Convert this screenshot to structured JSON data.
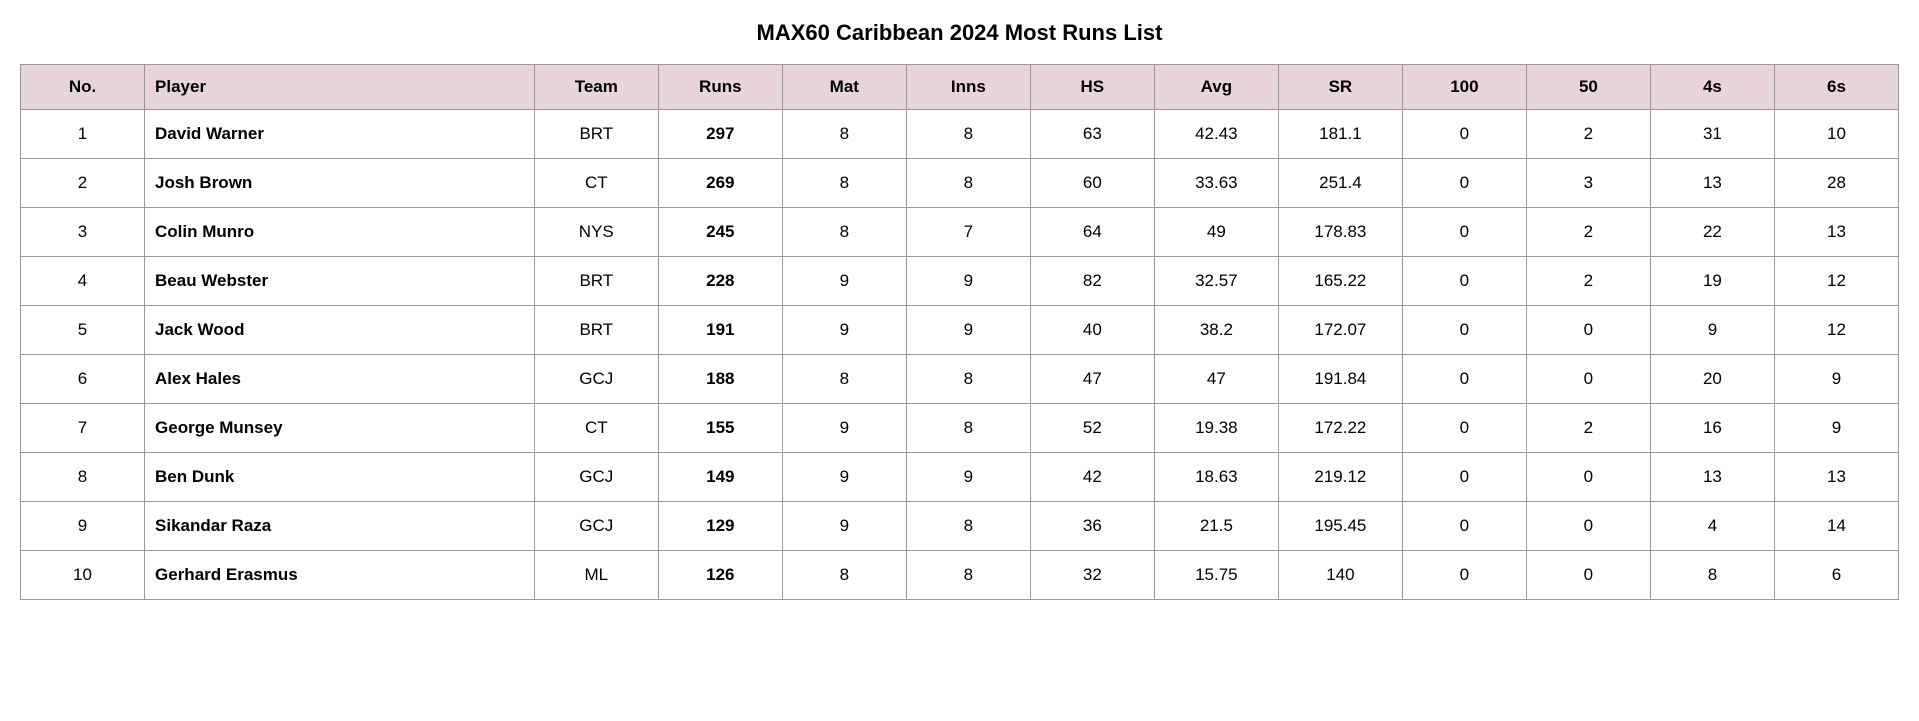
{
  "title": "MAX60 Caribbean 2024 Most Runs List",
  "table": {
    "type": "table",
    "header_bg_color": "#e8d4dd",
    "border_color": "#999999",
    "background_color": "#ffffff",
    "text_color": "#000000",
    "title_fontsize": 22,
    "header_fontsize": 17,
    "cell_fontsize": 17,
    "columns": [
      {
        "key": "no",
        "label": "No.",
        "align": "center",
        "width": "7%"
      },
      {
        "key": "player",
        "label": "Player",
        "align": "left",
        "width": "22%",
        "bold": true
      },
      {
        "key": "team",
        "label": "Team",
        "align": "center",
        "width": "7%"
      },
      {
        "key": "runs",
        "label": "Runs",
        "align": "center",
        "width": "7%",
        "bold": true
      },
      {
        "key": "mat",
        "label": "Mat",
        "align": "center",
        "width": "7%"
      },
      {
        "key": "inns",
        "label": "Inns",
        "align": "center",
        "width": "7%"
      },
      {
        "key": "hs",
        "label": "HS",
        "align": "center",
        "width": "7%"
      },
      {
        "key": "avg",
        "label": "Avg",
        "align": "center",
        "width": "7%"
      },
      {
        "key": "sr",
        "label": "SR",
        "align": "center",
        "width": "7%"
      },
      {
        "key": "c100",
        "label": "100",
        "align": "center",
        "width": "7%"
      },
      {
        "key": "c50",
        "label": "50",
        "align": "center",
        "width": "7%"
      },
      {
        "key": "fours",
        "label": "4s",
        "align": "center",
        "width": "7%"
      },
      {
        "key": "sixes",
        "label": "6s",
        "align": "center",
        "width": "7%"
      }
    ],
    "rows": [
      {
        "no": "1",
        "player": "David Warner",
        "team": "BRT",
        "runs": "297",
        "mat": "8",
        "inns": "8",
        "hs": "63",
        "avg": "42.43",
        "sr": "181.1",
        "c100": "0",
        "c50": "2",
        "fours": "31",
        "sixes": "10"
      },
      {
        "no": "2",
        "player": "Josh Brown",
        "team": "CT",
        "runs": "269",
        "mat": "8",
        "inns": "8",
        "hs": "60",
        "avg": "33.63",
        "sr": "251.4",
        "c100": "0",
        "c50": "3",
        "fours": "13",
        "sixes": "28"
      },
      {
        "no": "3",
        "player": "Colin Munro",
        "team": "NYS",
        "runs": "245",
        "mat": "8",
        "inns": "7",
        "hs": "64",
        "avg": "49",
        "sr": "178.83",
        "c100": "0",
        "c50": "2",
        "fours": "22",
        "sixes": "13"
      },
      {
        "no": "4",
        "player": "Beau Webster",
        "team": "BRT",
        "runs": "228",
        "mat": "9",
        "inns": "9",
        "hs": "82",
        "avg": "32.57",
        "sr": "165.22",
        "c100": "0",
        "c50": "2",
        "fours": "19",
        "sixes": "12"
      },
      {
        "no": "5",
        "player": "Jack Wood",
        "team": "BRT",
        "runs": "191",
        "mat": "9",
        "inns": "9",
        "hs": "40",
        "avg": "38.2",
        "sr": "172.07",
        "c100": "0",
        "c50": "0",
        "fours": "9",
        "sixes": "12"
      },
      {
        "no": "6",
        "player": "Alex Hales",
        "team": "GCJ",
        "runs": "188",
        "mat": "8",
        "inns": "8",
        "hs": "47",
        "avg": "47",
        "sr": "191.84",
        "c100": "0",
        "c50": "0",
        "fours": "20",
        "sixes": "9"
      },
      {
        "no": "7",
        "player": "George Munsey",
        "team": "CT",
        "runs": "155",
        "mat": "9",
        "inns": "8",
        "hs": "52",
        "avg": "19.38",
        "sr": "172.22",
        "c100": "0",
        "c50": "2",
        "fours": "16",
        "sixes": "9"
      },
      {
        "no": "8",
        "player": "Ben Dunk",
        "team": "GCJ",
        "runs": "149",
        "mat": "9",
        "inns": "9",
        "hs": "42",
        "avg": "18.63",
        "sr": "219.12",
        "c100": "0",
        "c50": "0",
        "fours": "13",
        "sixes": "13"
      },
      {
        "no": "9",
        "player": "Sikandar Raza",
        "team": "GCJ",
        "runs": "129",
        "mat": "9",
        "inns": "8",
        "hs": "36",
        "avg": "21.5",
        "sr": "195.45",
        "c100": "0",
        "c50": "0",
        "fours": "4",
        "sixes": "14"
      },
      {
        "no": "10",
        "player": "Gerhard Erasmus",
        "team": "ML",
        "runs": "126",
        "mat": "8",
        "inns": "8",
        "hs": "32",
        "avg": "15.75",
        "sr": "140",
        "c100": "0",
        "c50": "0",
        "fours": "8",
        "sixes": "6"
      }
    ]
  }
}
